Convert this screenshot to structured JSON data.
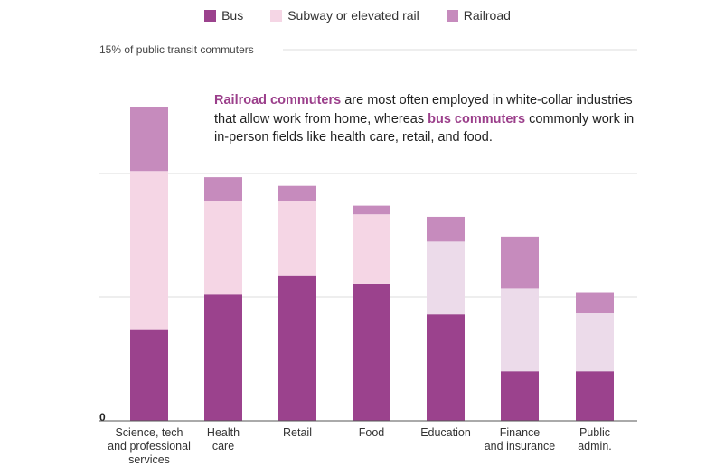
{
  "legend": [
    {
      "label": "Bus",
      "color": "#9b428d"
    },
    {
      "label": "Subway or elevated rail",
      "color": "#f5d6e5"
    },
    {
      "label": "Railroad",
      "color": "#c68bbd"
    }
  ],
  "annotation": {
    "part1": "Railroad commuters",
    "part2": " are most often employed in white-collar industries that allow work from home, whereas ",
    "part3": "bus commuters",
    "part4": " commonly work in in-person fields like health care, retail, and food."
  },
  "chart_data": {
    "type": "bar",
    "stacked": true,
    "ylim": [
      0,
      15
    ],
    "gridlines": [
      5,
      10,
      15
    ],
    "top_tick_label": "15% of public transit commuters",
    "zero_label": "0",
    "categories": [
      [
        "Science, tech",
        "and professional",
        "services"
      ],
      [
        "Health",
        "care"
      ],
      [
        "Retail"
      ],
      [
        "Food"
      ],
      [
        "Education"
      ],
      [
        "Finance",
        "and insurance"
      ],
      [
        "Public",
        "admin."
      ]
    ],
    "series": [
      {
        "name": "Bus",
        "color": "#9b428d",
        "values": [
          3.7,
          5.1,
          5.85,
          5.55,
          4.3,
          2.0,
          2.0
        ]
      },
      {
        "name": "Subway or elevated rail",
        "color": "#f5d6e5",
        "values": [
          6.4,
          3.8,
          3.05,
          2.8,
          2.95,
          3.35,
          2.35
        ]
      },
      {
        "name": "Railroad",
        "color": "#c68bbd",
        "values": [
          2.6,
          0.95,
          0.6,
          0.35,
          1.0,
          2.1,
          0.85
        ]
      }
    ],
    "subway_color_overrides": {
      "4": "#ecdbea",
      "5": "#ecdbea",
      "6": "#ecdbea"
    }
  }
}
